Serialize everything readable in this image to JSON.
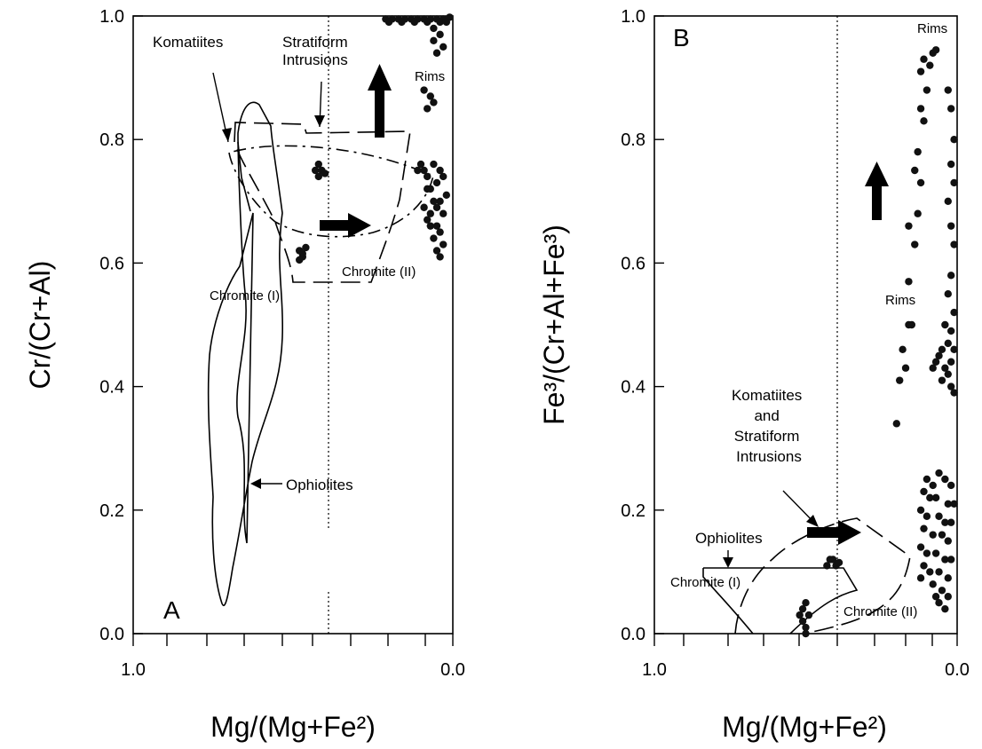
{
  "chart_data": [
    {
      "type": "scatter",
      "panel_label": "A",
      "xlabel": "Mg/(Mg+Fe²)",
      "ylabel": "Cr/(Cr+Al)",
      "xlim": [
        1.0,
        0.0
      ],
      "ylim": [
        0.0,
        1.0
      ],
      "x_reversed": true,
      "xticks": [
        "1.0",
        "0.0"
      ],
      "yticks": [
        "0.0",
        "0.2",
        "0.4",
        "0.6",
        "0.8",
        "1.0"
      ],
      "reference_line_x": 0.4,
      "annotations": [
        "Komatiites",
        "Stratiform Intrusions",
        "Rims",
        "Chromite (I)",
        "Chromite (II)",
        "Ophiolites"
      ],
      "series": [
        {
          "values": [
            [
              0.48,
              0.62
            ],
            [
              0.47,
              0.61
            ],
            [
              0.48,
              0.605
            ],
            [
              0.47,
              0.615
            ],
            [
              0.46,
              0.625
            ],
            [
              0.43,
              0.75
            ],
            [
              0.42,
              0.76
            ],
            [
              0.42,
              0.74
            ],
            [
              0.41,
              0.75
            ],
            [
              0.4,
              0.745
            ],
            [
              0.21,
              0.995
            ],
            [
              0.19,
              0.995
            ],
            [
              0.17,
              0.995
            ],
            [
              0.15,
              0.995
            ],
            [
              0.13,
              0.995
            ],
            [
              0.11,
              0.995
            ],
            [
              0.09,
              0.995
            ],
            [
              0.07,
              0.995
            ],
            [
              0.05,
              0.995
            ],
            [
              0.03,
              0.995
            ],
            [
              0.01,
              0.998
            ],
            [
              0.2,
              0.99
            ],
            [
              0.16,
              0.99
            ],
            [
              0.12,
              0.99
            ],
            [
              0.08,
              0.99
            ],
            [
              0.04,
              0.99
            ],
            [
              0.02,
              0.99
            ],
            [
              0.06,
              0.98
            ],
            [
              0.04,
              0.97
            ],
            [
              0.06,
              0.96
            ],
            [
              0.03,
              0.95
            ],
            [
              0.05,
              0.94
            ],
            [
              0.09,
              0.88
            ],
            [
              0.07,
              0.87
            ],
            [
              0.08,
              0.85
            ],
            [
              0.06,
              0.86
            ],
            [
              0.1,
              0.76
            ],
            [
              0.09,
              0.75
            ],
            [
              0.08,
              0.74
            ],
            [
              0.11,
              0.75
            ],
            [
              0.06,
              0.76
            ],
            [
              0.04,
              0.75
            ],
            [
              0.03,
              0.74
            ],
            [
              0.05,
              0.73
            ],
            [
              0.07,
              0.72
            ],
            [
              0.08,
              0.72
            ],
            [
              0.02,
              0.71
            ],
            [
              0.04,
              0.7
            ],
            [
              0.05,
              0.69
            ],
            [
              0.06,
              0.7
            ],
            [
              0.07,
              0.68
            ],
            [
              0.03,
              0.68
            ],
            [
              0.09,
              0.69
            ],
            [
              0.08,
              0.67
            ],
            [
              0.05,
              0.66
            ],
            [
              0.04,
              0.65
            ],
            [
              0.06,
              0.64
            ],
            [
              0.03,
              0.63
            ],
            [
              0.05,
              0.62
            ],
            [
              0.04,
              0.61
            ],
            [
              0.07,
              0.66
            ]
          ]
        }
      ]
    },
    {
      "type": "scatter",
      "panel_label": "B",
      "xlabel": "Mg/(Mg+Fe²)",
      "ylabel": "Fe³/(Cr+Al+Fe³)",
      "xlim": [
        1.0,
        0.0
      ],
      "ylim": [
        0.0,
        1.0
      ],
      "x_reversed": true,
      "xticks": [
        "1.0",
        "0.0"
      ],
      "yticks": [
        "0.0",
        "0.2",
        "0.4",
        "0.6",
        "0.8",
        "1.0"
      ],
      "reference_line_x": 0.4,
      "annotations": [
        "Rims",
        "Rims",
        "Komatiites and Stratiform Intrusions",
        "Ophiolites",
        "Chromite (I)",
        "Chromite (II)"
      ],
      "series": [
        {
          "values": [
            [
              0.5,
              0.0
            ],
            [
              0.5,
              0.01
            ],
            [
              0.51,
              0.02
            ],
            [
              0.52,
              0.03
            ],
            [
              0.51,
              0.04
            ],
            [
              0.5,
              0.05
            ],
            [
              0.49,
              0.03
            ],
            [
              0.43,
              0.11
            ],
            [
              0.42,
              0.12
            ],
            [
              0.4,
              0.11
            ],
            [
              0.41,
              0.12
            ],
            [
              0.39,
              0.115
            ],
            [
              0.2,
              0.34
            ],
            [
              0.19,
              0.41
            ],
            [
              0.17,
              0.43
            ],
            [
              0.18,
              0.46
            ],
            [
              0.16,
              0.5
            ],
            [
              0.15,
              0.5
            ],
            [
              0.16,
              0.57
            ],
            [
              0.14,
              0.63
            ],
            [
              0.16,
              0.66
            ],
            [
              0.13,
              0.68
            ],
            [
              0.12,
              0.73
            ],
            [
              0.14,
              0.75
            ],
            [
              0.13,
              0.78
            ],
            [
              0.11,
              0.83
            ],
            [
              0.12,
              0.85
            ],
            [
              0.1,
              0.88
            ],
            [
              0.12,
              0.91
            ],
            [
              0.11,
              0.93
            ],
            [
              0.09,
              0.92
            ],
            [
              0.08,
              0.94
            ],
            [
              0.07,
              0.945
            ],
            [
              0.03,
              0.88
            ],
            [
              0.02,
              0.85
            ],
            [
              0.01,
              0.8
            ],
            [
              0.02,
              0.76
            ],
            [
              0.01,
              0.73
            ],
            [
              0.03,
              0.7
            ],
            [
              0.02,
              0.66
            ],
            [
              0.01,
              0.63
            ],
            [
              0.02,
              0.58
            ],
            [
              0.03,
              0.55
            ],
            [
              0.01,
              0.52
            ],
            [
              0.04,
              0.5
            ],
            [
              0.02,
              0.49
            ],
            [
              0.03,
              0.47
            ],
            [
              0.05,
              0.46
            ],
            [
              0.01,
              0.46
            ],
            [
              0.06,
              0.45
            ],
            [
              0.02,
              0.44
            ],
            [
              0.04,
              0.43
            ],
            [
              0.03,
              0.42
            ],
            [
              0.05,
              0.41
            ],
            [
              0.02,
              0.4
            ],
            [
              0.01,
              0.39
            ],
            [
              0.07,
              0.44
            ],
            [
              0.08,
              0.43
            ],
            [
              0.1,
              0.25
            ],
            [
              0.08,
              0.24
            ],
            [
              0.06,
              0.26
            ],
            [
              0.04,
              0.25
            ],
            [
              0.02,
              0.24
            ],
            [
              0.11,
              0.23
            ],
            [
              0.09,
              0.22
            ],
            [
              0.07,
              0.22
            ],
            [
              0.03,
              0.21
            ],
            [
              0.01,
              0.21
            ],
            [
              0.12,
              0.2
            ],
            [
              0.1,
              0.19
            ],
            [
              0.06,
              0.19
            ],
            [
              0.04,
              0.18
            ],
            [
              0.02,
              0.18
            ],
            [
              0.11,
              0.17
            ],
            [
              0.08,
              0.16
            ],
            [
              0.05,
              0.16
            ],
            [
              0.03,
              0.15
            ],
            [
              0.12,
              0.14
            ],
            [
              0.1,
              0.13
            ],
            [
              0.07,
              0.13
            ],
            [
              0.04,
              0.12
            ],
            [
              0.02,
              0.12
            ],
            [
              0.11,
              0.11
            ],
            [
              0.09,
              0.1
            ],
            [
              0.06,
              0.1
            ],
            [
              0.03,
              0.09
            ],
            [
              0.12,
              0.09
            ],
            [
              0.08,
              0.08
            ],
            [
              0.05,
              0.07
            ],
            [
              0.03,
              0.06
            ],
            [
              0.06,
              0.05
            ],
            [
              0.04,
              0.04
            ],
            [
              0.07,
              0.06
            ]
          ]
        }
      ]
    }
  ]
}
